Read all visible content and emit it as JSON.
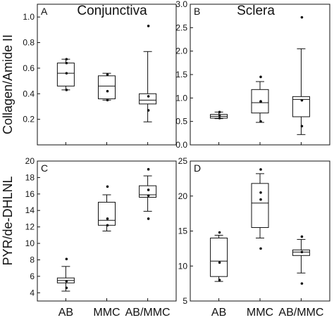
{
  "figure": {
    "column_titles": [
      "Conjunctiva",
      "Sclera"
    ],
    "row_ylabels": [
      "Collagen/Amide II",
      "PYR/de-DHLNL"
    ]
  },
  "chart_data": [
    {
      "type": "box",
      "panel": "A",
      "title": "Conjunctiva",
      "ylabel": "Collagen/Amide II",
      "categories": [
        "AB",
        "MMC",
        "AB/MMC"
      ],
      "ylim": [
        0.0,
        1.1
      ],
      "yticks": [
        "0.2",
        "0.4",
        "0.6",
        "0.8",
        "1.0"
      ],
      "boxes": [
        {
          "whisker_low": 0.43,
          "q1": 0.46,
          "median": 0.56,
          "q3": 0.64,
          "whisker_high": 0.67,
          "points": [
            0.43,
            0.56,
            0.64,
            0.67
          ]
        },
        {
          "whisker_low": 0.35,
          "q1": 0.36,
          "median": 0.46,
          "q3": 0.54,
          "whisker_high": 0.56,
          "points": [
            0.35,
            0.42,
            0.55
          ]
        },
        {
          "whisker_low": 0.18,
          "q1": 0.32,
          "median": 0.35,
          "q3": 0.4,
          "whisker_high": 0.73,
          "points": [
            0.27,
            0.38,
            0.93
          ]
        }
      ]
    },
    {
      "type": "box",
      "panel": "B",
      "title": "Sclera",
      "ylabel": "",
      "categories": [
        "AB",
        "MMC",
        "AB/MMC"
      ],
      "ylim": [
        0.0,
        3.0
      ],
      "yticks": [
        "0.0",
        "0.5",
        "1.0",
        "1.5",
        "2.0",
        "2.5",
        "3.0"
      ],
      "boxes": [
        {
          "whisker_low": 0.56,
          "q1": 0.57,
          "median": 0.61,
          "q3": 0.65,
          "whisker_high": 0.7,
          "points": [
            0.57,
            0.62,
            0.7
          ]
        },
        {
          "whisker_low": 0.48,
          "q1": 0.68,
          "median": 0.9,
          "q3": 1.18,
          "whisker_high": 1.35,
          "points": [
            0.5,
            0.92,
            0.93,
            1.45
          ]
        },
        {
          "whisker_low": 0.22,
          "q1": 0.6,
          "median": 0.97,
          "q3": 1.03,
          "whisker_high": 2.05,
          "points": [
            0.4,
            0.95,
            2.72
          ]
        }
      ]
    },
    {
      "type": "box",
      "panel": "C",
      "title": "",
      "ylabel": "PYR/de-DHLNL",
      "categories": [
        "AB",
        "MMC",
        "AB/MMC"
      ],
      "ylim": [
        3.0,
        20.0
      ],
      "yticks": [
        "4",
        "6",
        "8",
        "10",
        "12",
        "14",
        "16",
        "18",
        "20"
      ],
      "boxes": [
        {
          "whisker_low": 4.2,
          "q1": 5.2,
          "median": 5.5,
          "q3": 5.8,
          "whisker_high": 7.2,
          "points": [
            4.6,
            5.4,
            8.1
          ]
        },
        {
          "whisker_low": 11.5,
          "q1": 12.2,
          "median": 12.8,
          "q3": 15.0,
          "whisker_high": 15.9,
          "points": [
            12.2,
            13.0,
            16.9
          ]
        },
        {
          "whisker_low": 13.9,
          "q1": 15.6,
          "median": 15.9,
          "q3": 17.0,
          "whisker_high": 18.2,
          "points": [
            13.0,
            15.8,
            16.5,
            19.0
          ]
        }
      ]
    },
    {
      "type": "box",
      "panel": "D",
      "title": "",
      "ylabel": "",
      "categories": [
        "AB",
        "MMC",
        "AB/MMC"
      ],
      "ylim": [
        5.0,
        25.0
      ],
      "yticks": [
        "5",
        "10",
        "15",
        "20",
        "25"
      ],
      "boxes": [
        {
          "whisker_low": 7.8,
          "q1": 8.5,
          "median": 10.7,
          "q3": 14.0,
          "whisker_high": 14.4,
          "points": [
            8.0,
            10.5,
            14.8
          ]
        },
        {
          "whisker_low": 14.0,
          "q1": 15.5,
          "median": 19.0,
          "q3": 21.8,
          "whisker_high": 23.2,
          "points": [
            12.5,
            19.5,
            20.5,
            23.8
          ]
        },
        {
          "whisker_low": 9.0,
          "q1": 11.5,
          "median": 12.0,
          "q3": 12.3,
          "whisker_high": 13.8,
          "points": [
            7.5,
            12.0,
            14.2
          ]
        }
      ]
    }
  ]
}
